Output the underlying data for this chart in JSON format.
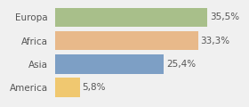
{
  "categories": [
    "America",
    "Asia",
    "Africa",
    "Europa"
  ],
  "values": [
    5.8,
    25.4,
    33.3,
    35.5
  ],
  "labels": [
    "5,8%",
    "25,4%",
    "33,3%",
    "35,5%"
  ],
  "colors": [
    "#f0c870",
    "#7d9fc5",
    "#e8b98a",
    "#a8bf8a"
  ],
  "xlim": [
    0,
    44
  ],
  "background_color": "#f0f0f0",
  "bar_height": 0.82,
  "label_fontsize": 7.5,
  "tick_fontsize": 7.5
}
